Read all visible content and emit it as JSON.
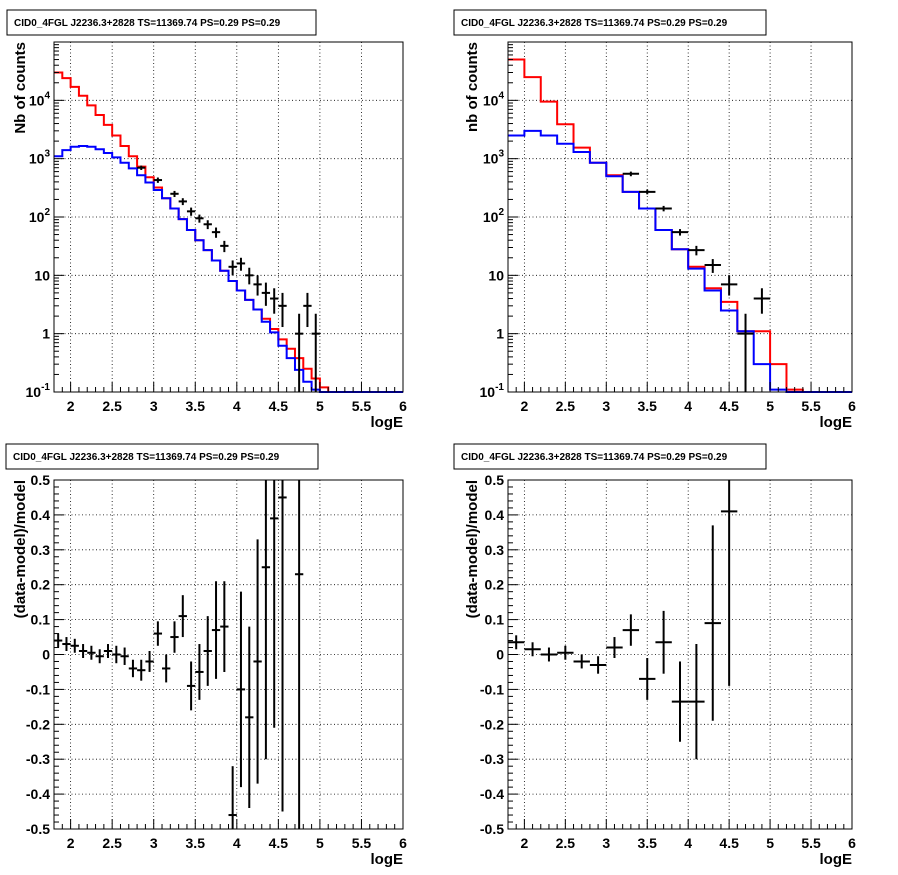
{
  "chart_data": [
    {
      "id": "tl",
      "type": "step-histogram",
      "title": "CID0_4FGL J2236.3+2828 TS=11369.74 PS=0.29 PS=0.29",
      "xlabel": "logE",
      "ylabel": "Nb of counts",
      "xlim": [
        1.8,
        6
      ],
      "ylim": [
        0.1,
        100000
      ],
      "yscale": "log",
      "grid": true,
      "x_ticks": [
        "2",
        "2.5",
        "3",
        "3.5",
        "4",
        "4.5",
        "5",
        "5.5",
        "6"
      ],
      "y_ticks": [
        "10^-1",
        "1",
        "10",
        "10^2",
        "10^3",
        "10^4"
      ],
      "bin_edges": [
        1.8,
        1.9,
        2.0,
        2.1,
        2.2,
        2.3,
        2.4,
        2.5,
        2.6,
        2.7,
        2.8,
        2.9,
        3.0,
        3.1,
        3.2,
        3.3,
        3.4,
        3.5,
        3.6,
        3.7,
        3.8,
        3.9,
        4.0,
        4.1,
        4.2,
        4.3,
        4.4,
        4.5,
        4.6,
        4.7,
        4.8,
        4.9,
        5.0,
        5.1,
        5.2,
        5.3,
        5.4,
        5.5,
        5.6,
        5.7,
        5.8,
        5.9,
        6.0
      ],
      "series": [
        {
          "color": "#ff0000",
          "values": [
            30000,
            24000,
            17000,
            12000,
            8200,
            5600,
            3800,
            2500,
            1650,
            1100,
            730,
            480,
            320,
            210,
            140,
            92,
            60,
            40,
            27,
            18,
            12,
            8,
            5.5,
            3.8,
            2.6,
            1.8,
            1.2,
            0.8,
            0.55,
            0.38,
            0.25,
            0.17,
            0.12,
            0.1,
            0.1,
            0.1,
            0.1,
            0.1,
            0.1,
            0.1,
            0.1,
            0.1
          ]
        },
        {
          "color": "#0000ff",
          "values": [
            1100,
            1400,
            1600,
            1650,
            1600,
            1450,
            1250,
            1050,
            850,
            680,
            520,
            390,
            290,
            210,
            140,
            92,
            60,
            40,
            27,
            18,
            12,
            8,
            5.5,
            3.8,
            2.6,
            1.6,
            1.05,
            0.62,
            0.38,
            0.24,
            0.15,
            0.11,
            0.1,
            0.1,
            0.1,
            0.1,
            0.1,
            0.1,
            0.1,
            0.1,
            0.1,
            0.1
          ]
        }
      ],
      "data_points": [
        {
          "x": 2.85,
          "y": 700,
          "ylo": 640,
          "yhi": 760
        },
        {
          "x": 3.05,
          "y": 430,
          "ylo": 385,
          "yhi": 475
        },
        {
          "x": 3.25,
          "y": 250,
          "ylo": 220,
          "yhi": 280
        },
        {
          "x": 3.35,
          "y": 185,
          "ylo": 160,
          "yhi": 210
        },
        {
          "x": 3.45,
          "y": 125,
          "ylo": 105,
          "yhi": 145
        },
        {
          "x": 3.55,
          "y": 95,
          "ylo": 80,
          "yhi": 110
        },
        {
          "x": 3.65,
          "y": 75,
          "ylo": 62,
          "yhi": 88
        },
        {
          "x": 3.75,
          "y": 55,
          "ylo": 44,
          "yhi": 66
        },
        {
          "x": 3.85,
          "y": 32,
          "ylo": 25,
          "yhi": 39
        },
        {
          "x": 3.95,
          "y": 14,
          "ylo": 10,
          "yhi": 18
        },
        {
          "x": 4.05,
          "y": 16,
          "ylo": 12,
          "yhi": 20
        },
        {
          "x": 4.15,
          "y": 10,
          "ylo": 7,
          "yhi": 13.5
        },
        {
          "x": 4.25,
          "y": 7,
          "ylo": 4.5,
          "yhi": 10
        },
        {
          "x": 4.35,
          "y": 5,
          "ylo": 3,
          "yhi": 7.5
        },
        {
          "x": 4.45,
          "y": 4,
          "ylo": 2.2,
          "yhi": 6
        },
        {
          "x": 4.55,
          "y": 3,
          "ylo": 1.3,
          "yhi": 5
        },
        {
          "x": 4.75,
          "y": 1,
          "ylo": 0.1,
          "yhi": 2.2
        },
        {
          "x": 4.85,
          "y": 3,
          "ylo": 1.3,
          "yhi": 5
        },
        {
          "x": 4.95,
          "y": 1,
          "ylo": 0.1,
          "yhi": 2.2
        }
      ]
    },
    {
      "id": "tr",
      "type": "step-histogram",
      "title": "CID0_4FGL J2236.3+2828 TS=11369.74 PS=0.29 PS=0.29",
      "xlabel": "logE",
      "ylabel": "nb of counts",
      "xlim": [
        1.8,
        6
      ],
      "ylim": [
        0.1,
        100000
      ],
      "yscale": "log",
      "grid": true,
      "x_ticks": [
        "2",
        "2.5",
        "3",
        "3.5",
        "4",
        "4.5",
        "5",
        "5.5",
        "6"
      ],
      "y_ticks": [
        "10^-1",
        "1",
        "10",
        "10^2",
        "10^3",
        "10^4"
      ],
      "bin_edges": [
        1.8,
        2.0,
        2.2,
        2.4,
        2.6,
        2.8,
        3.0,
        3.2,
        3.4,
        3.6,
        3.8,
        4.0,
        4.2,
        4.4,
        4.6,
        4.8,
        5.0,
        5.2,
        5.4,
        5.6,
        5.8,
        6.0
      ],
      "series": [
        {
          "color": "#ff0000",
          "values": [
            50000,
            25000,
            9500,
            3900,
            1550,
            850,
            520,
            270,
            140,
            60,
            28,
            14,
            6,
            3.5,
            1.1,
            1.1,
            0.3,
            0.11,
            0.1,
            0.1,
            0.1
          ]
        },
        {
          "color": "#0000ff",
          "values": [
            2500,
            3000,
            2500,
            1800,
            1300,
            850,
            500,
            270,
            140,
            60,
            28,
            13,
            5.5,
            2.5,
            1.1,
            0.3,
            0.11,
            0.1,
            0.1,
            0.1,
            0.1
          ]
        }
      ],
      "data_points": [
        {
          "x": 3.3,
          "y": 550,
          "ylo": 500,
          "yhi": 600
        },
        {
          "x": 3.5,
          "y": 270,
          "ylo": 245,
          "yhi": 295
        },
        {
          "x": 3.7,
          "y": 140,
          "ylo": 125,
          "yhi": 155
        },
        {
          "x": 3.9,
          "y": 55,
          "ylo": 48,
          "yhi": 62
        },
        {
          "x": 4.1,
          "y": 27,
          "ylo": 22,
          "yhi": 32
        },
        {
          "x": 4.3,
          "y": 15,
          "ylo": 11,
          "yhi": 19
        },
        {
          "x": 4.5,
          "y": 7,
          "ylo": 4.5,
          "yhi": 10
        },
        {
          "x": 4.7,
          "y": 1,
          "ylo": 0.1,
          "yhi": 2.2
        },
        {
          "x": 4.9,
          "y": 4,
          "ylo": 2.2,
          "yhi": 6
        }
      ]
    },
    {
      "id": "bl",
      "type": "scatter-errorbars",
      "title": "CID0_4FGL J2236.3+2828 TS=11369.74 PS=0.29 PS=0.29",
      "xlabel": "logE",
      "ylabel": "(data-model)/model",
      "xlim": [
        1.8,
        6
      ],
      "ylim": [
        -0.5,
        0.5
      ],
      "grid": true,
      "x_ticks": [
        "2",
        "2.5",
        "3",
        "3.5",
        "4",
        "4.5",
        "5",
        "5.5",
        "6"
      ],
      "y_ticks": [
        "-0.5",
        "-0.4",
        "-0.3",
        "-0.2",
        "-0.1",
        "0",
        "0.1",
        "0.2",
        "0.3",
        "0.4",
        "0.5"
      ],
      "xerr": 0.05,
      "points": [
        {
          "x": 1.85,
          "y": 0.04,
          "e": 0.02
        },
        {
          "x": 1.95,
          "y": 0.03,
          "e": 0.02
        },
        {
          "x": 2.05,
          "y": 0.025,
          "e": 0.02
        },
        {
          "x": 2.15,
          "y": 0.01,
          "e": 0.02
        },
        {
          "x": 2.25,
          "y": 0.005,
          "e": 0.02
        },
        {
          "x": 2.35,
          "y": -0.005,
          "e": 0.02
        },
        {
          "x": 2.45,
          "y": 0.01,
          "e": 0.02
        },
        {
          "x": 2.55,
          "y": 0.0,
          "e": 0.025
        },
        {
          "x": 2.65,
          "y": -0.005,
          "e": 0.025
        },
        {
          "x": 2.75,
          "y": -0.04,
          "e": 0.025
        },
        {
          "x": 2.85,
          "y": -0.045,
          "e": 0.03
        },
        {
          "x": 2.95,
          "y": -0.02,
          "e": 0.03
        },
        {
          "x": 3.05,
          "y": 0.06,
          "e": 0.035
        },
        {
          "x": 3.15,
          "y": -0.04,
          "e": 0.04
        },
        {
          "x": 3.25,
          "y": 0.05,
          "e": 0.045
        },
        {
          "x": 3.35,
          "y": 0.11,
          "e": 0.06
        },
        {
          "x": 3.45,
          "y": -0.09,
          "e": 0.07
        },
        {
          "x": 3.55,
          "y": -0.05,
          "e": 0.08
        },
        {
          "x": 3.65,
          "y": 0.01,
          "e": 0.1
        },
        {
          "x": 3.75,
          "y": 0.07,
          "e": 0.14
        },
        {
          "x": 3.85,
          "y": 0.08,
          "e": 0.13
        },
        {
          "x": 3.95,
          "y": -0.46,
          "e": 0.14
        },
        {
          "x": 4.05,
          "y": -0.1,
          "e": 0.28
        },
        {
          "x": 4.15,
          "y": -0.18,
          "e": 0.26
        },
        {
          "x": 4.25,
          "y": -0.02,
          "e": 0.35
        },
        {
          "x": 4.35,
          "y": 0.25,
          "e": 0.55
        },
        {
          "x": 4.45,
          "y": 0.39,
          "e": 0.6
        },
        {
          "x": 4.55,
          "y": 0.45,
          "e": 0.9
        },
        {
          "x": 4.75,
          "y": 0.23,
          "e": 1.0
        }
      ]
    },
    {
      "id": "br",
      "type": "scatter-errorbars",
      "title": "CID0_4FGL J2236.3+2828 TS=11369.74 PS=0.29 PS=0.29",
      "xlabel": "logE",
      "ylabel": "(data-model)/model",
      "xlim": [
        1.8,
        6
      ],
      "ylim": [
        -0.5,
        0.5
      ],
      "grid": true,
      "x_ticks": [
        "2",
        "2.5",
        "3",
        "3.5",
        "4",
        "4.5",
        "5",
        "5.5",
        "6"
      ],
      "y_ticks": [
        "-0.5",
        "-0.4",
        "-0.3",
        "-0.2",
        "-0.1",
        "0",
        "0.1",
        "0.2",
        "0.3",
        "0.4",
        "0.5"
      ],
      "xerr": 0.1,
      "points": [
        {
          "x": 1.9,
          "y": 0.035,
          "e": 0.02
        },
        {
          "x": 2.1,
          "y": 0.015,
          "e": 0.02
        },
        {
          "x": 2.3,
          "y": 0.0,
          "e": 0.02
        },
        {
          "x": 2.5,
          "y": 0.005,
          "e": 0.02
        },
        {
          "x": 2.7,
          "y": -0.02,
          "e": 0.02
        },
        {
          "x": 2.9,
          "y": -0.03,
          "e": 0.025
        },
        {
          "x": 3.1,
          "y": 0.02,
          "e": 0.03
        },
        {
          "x": 3.3,
          "y": 0.07,
          "e": 0.045
        },
        {
          "x": 3.5,
          "y": -0.07,
          "e": 0.06
        },
        {
          "x": 3.7,
          "y": 0.035,
          "e": 0.09
        },
        {
          "x": 3.9,
          "y": -0.135,
          "e": 0.115
        },
        {
          "x": 4.1,
          "y": -0.135,
          "e": 0.165
        },
        {
          "x": 4.3,
          "y": 0.09,
          "e": 0.28
        },
        {
          "x": 4.5,
          "y": 0.41,
          "e": 0.5
        }
      ]
    }
  ]
}
